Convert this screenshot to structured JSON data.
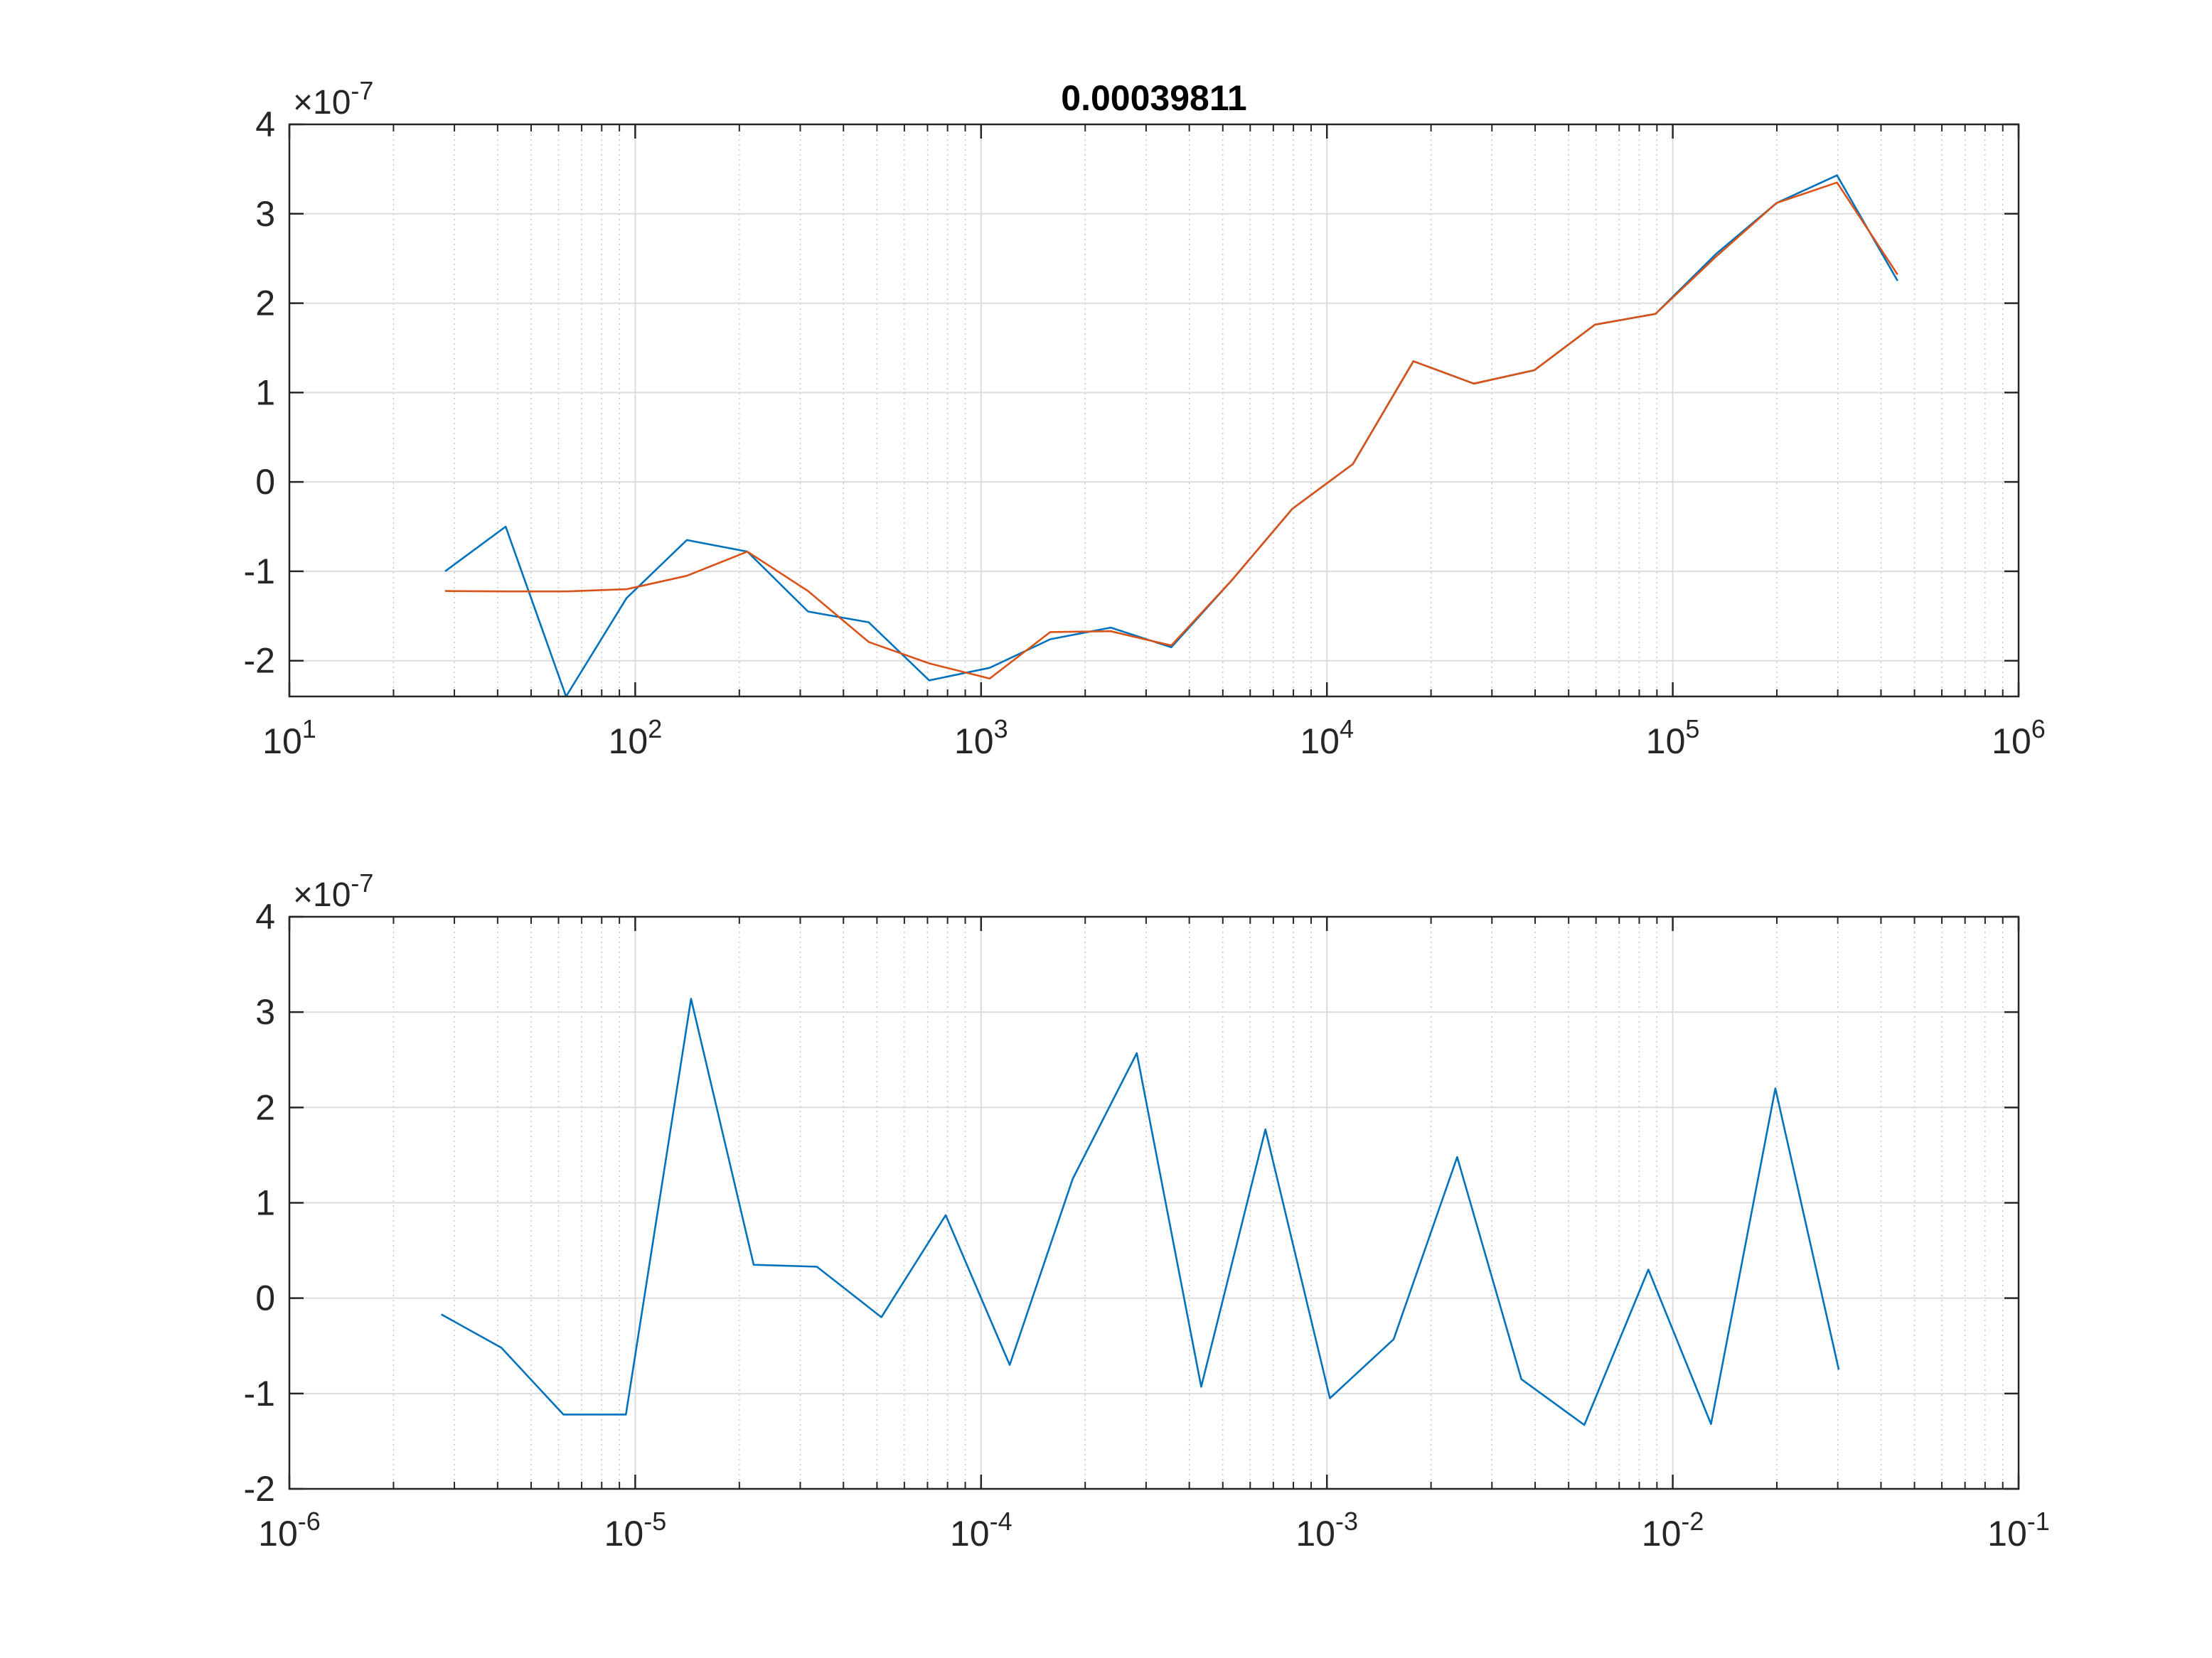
{
  "chart_data": [
    {
      "type": "line",
      "title": "0.00039811",
      "xscale": "log",
      "xlim": [
        10,
        1000000
      ],
      "ylim": [
        -2.4e-07,
        4e-07
      ],
      "y_multiplier_label": "×10",
      "y_multiplier_exponent": "-7",
      "grid": true,
      "minor_grid_x": true,
      "x_ticks": [
        10,
        100,
        1000,
        10000,
        100000,
        1000000
      ],
      "x_tick_labels": [
        {
          "base": "10",
          "exp": "1"
        },
        {
          "base": "10",
          "exp": "2"
        },
        {
          "base": "10",
          "exp": "3"
        },
        {
          "base": "10",
          "exp": "4"
        },
        {
          "base": "10",
          "exp": "5"
        },
        {
          "base": "10",
          "exp": "6"
        }
      ],
      "y_ticks": [
        -2e-07,
        -1e-07,
        0,
        1e-07,
        2e-07,
        3e-07,
        4e-07
      ],
      "y_tick_labels": [
        "-2",
        "-1",
        "0",
        "1",
        "2",
        "3",
        "4"
      ],
      "series": [
        {
          "color": "#0072BD",
          "x": [
            28.2,
            42.2,
            63.1,
            94.4,
            141,
            211,
            316,
            473,
            708,
            1059,
            1585,
            2371,
            3548,
            5309,
            7943,
            11885,
            17783,
            26607,
            39811,
            59566,
            89125,
            133352,
            199526,
            298538,
            446684
          ],
          "y": [
            -1e-07,
            -5e-08,
            -2.4e-07,
            -1.3e-07,
            -6.5e-08,
            -7.8e-08,
            -1.45e-07,
            -1.57e-07,
            -2.22e-07,
            -2.08e-07,
            -1.76e-07,
            -1.63e-07,
            -1.85e-07,
            -1.1e-07,
            -3e-08,
            2e-08,
            1.35e-07,
            1.1e-07,
            1.25e-07,
            1.76e-07,
            1.88e-07,
            2.55e-07,
            3.12e-07,
            3.43e-07,
            2.25e-07
          ]
        },
        {
          "color": "#D95319",
          "x": [
            28.2,
            42.2,
            63.1,
            94.4,
            141,
            211,
            316,
            473,
            708,
            1059,
            1585,
            2371,
            3548,
            5309,
            7943,
            11885,
            17783,
            26607,
            39811,
            59566,
            89125,
            133352,
            199526,
            298538,
            446684
          ],
          "y": [
            -1.22e-07,
            -1.225e-07,
            -1.225e-07,
            -1.2e-07,
            -1.05e-07,
            -7.8e-08,
            -1.22e-07,
            -1.79e-07,
            -2.03e-07,
            -2.2e-07,
            -1.68e-07,
            -1.67e-07,
            -1.83e-07,
            -1.1e-07,
            -3e-08,
            2e-08,
            1.35e-07,
            1.1e-07,
            1.25e-07,
            1.76e-07,
            1.88e-07,
            2.52e-07,
            3.12e-07,
            3.35e-07,
            2.32e-07
          ]
        }
      ]
    },
    {
      "type": "line",
      "title": "",
      "xscale": "log",
      "xlim": [
        1e-06,
        0.1
      ],
      "ylim": [
        -2e-07,
        4e-07
      ],
      "y_multiplier_label": "×10",
      "y_multiplier_exponent": "-7",
      "grid": true,
      "minor_grid_x": true,
      "x_ticks": [
        1e-06,
        1e-05,
        0.0001,
        0.001,
        0.01,
        0.1
      ],
      "x_tick_labels": [
        {
          "base": "10",
          "exp": "-6"
        },
        {
          "base": "10",
          "exp": "-5"
        },
        {
          "base": "10",
          "exp": "-4"
        },
        {
          "base": "10",
          "exp": "-3"
        },
        {
          "base": "10",
          "exp": "-2"
        },
        {
          "base": "10",
          "exp": "-1"
        }
      ],
      "y_ticks": [
        -2e-07,
        -1e-07,
        0,
        1e-07,
        2e-07,
        3e-07,
        4e-07
      ],
      "y_tick_labels": [
        "-2",
        "-1",
        "0",
        "1",
        "2",
        "3",
        "4"
      ],
      "series": [
        {
          "color": "#0072BD",
          "x": [
            2.75e-06,
            4.1e-06,
            6.2e-06,
            9.4e-06,
            1.45e-05,
            2.2e-05,
            3.35e-05,
            5.15e-05,
            7.9e-05,
            0.000121,
            0.000184,
            0.000282,
            0.000433,
            0.000664,
            0.00102,
            0.00156,
            0.00238,
            0.00365,
            0.00555,
            0.0085,
            0.0129,
            0.0198,
            0.0302
          ],
          "y": [
            -1.7e-08,
            -5.2e-08,
            -1.22e-07,
            -1.22e-07,
            3.14e-07,
            3.5e-08,
            3.3e-08,
            -2e-08,
            8.7e-08,
            -7e-08,
            1.25e-07,
            2.57e-07,
            -9.3e-08,
            1.77e-07,
            -1.05e-07,
            -4.3e-08,
            1.48e-07,
            -8.5e-08,
            -1.33e-07,
            3e-08,
            -1.32e-07,
            2.2e-07,
            -7.5e-08
          ]
        }
      ]
    }
  ]
}
